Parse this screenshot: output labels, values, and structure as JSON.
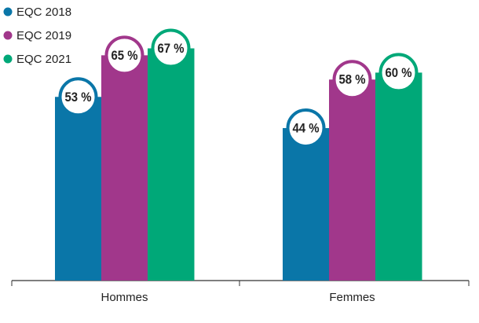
{
  "chart_data": {
    "type": "bar",
    "categories": [
      "Hommes",
      "Femmes"
    ],
    "series": [
      {
        "name": "EQC 2018",
        "color": "#0a76a8",
        "values": [
          53,
          44
        ],
        "value_labels": [
          "53 %",
          "44 %"
        ]
      },
      {
        "name": "EQC 2019",
        "color": "#a1378b",
        "values": [
          65,
          58
        ],
        "value_labels": [
          "65 %",
          "58 %"
        ]
      },
      {
        "name": "EQC 2021",
        "color": "#00a878",
        "values": [
          67,
          60
        ],
        "value_labels": [
          "67 %",
          "60 %"
        ]
      }
    ],
    "legend": "top-left"
  }
}
